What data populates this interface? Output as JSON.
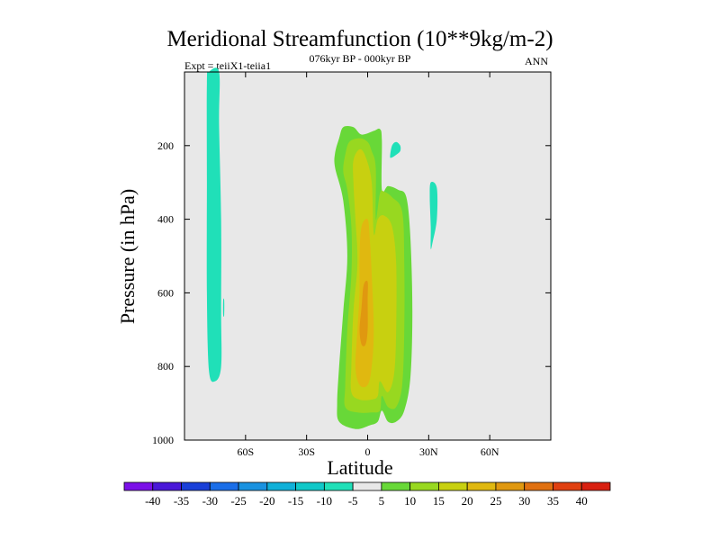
{
  "chart_data": {
    "type": "heatmap",
    "title": "Meridional Streamfunction (10**9kg/m-2)",
    "subtitle": "076kyr BP - 000kyr BP",
    "left_label": "Expt = teiiX1-teiia1",
    "right_label": "ANN",
    "xlabel": "Latitude",
    "ylabel": "Pressure (in hPa)",
    "xlim": [
      -90,
      90
    ],
    "ylim": [
      1000,
      0
    ],
    "x_ticks": [
      {
        "value": -60,
        "label": "60S"
      },
      {
        "value": -30,
        "label": "30S"
      },
      {
        "value": 0,
        "label": "0"
      },
      {
        "value": 30,
        "label": "30N"
      },
      {
        "value": 60,
        "label": "60N"
      }
    ],
    "y_ticks": [
      {
        "value": 200,
        "label": "200"
      },
      {
        "value": 400,
        "label": "400"
      },
      {
        "value": 600,
        "label": "600"
      },
      {
        "value": 800,
        "label": "800"
      },
      {
        "value": 1000,
        "label": "1000"
      }
    ],
    "background_color": "#e8e8e8",
    "colorbar": {
      "levels": [
        -40,
        -35,
        -30,
        -25,
        -20,
        -15,
        -10,
        -5,
        5,
        10,
        15,
        20,
        25,
        30,
        35,
        40
      ],
      "labels": [
        "-40",
        "-35",
        "-30",
        "-25",
        "-20",
        "-15",
        "-10",
        "-5",
        "5",
        "10",
        "15",
        "20",
        "25",
        "30",
        "35",
        "40"
      ],
      "colors": [
        "#7b10e8",
        "#4a18d8",
        "#1a40d8",
        "#1a6ee8",
        "#1a92e0",
        "#10b0d8",
        "#10c8c8",
        "#20e0b8",
        "#e8e8e8",
        "#68d838",
        "#98d820",
        "#c8d010",
        "#e0b810",
        "#e09810",
        "#e07010",
        "#e04010",
        "#d82010"
      ]
    },
    "contours": [
      {
        "level": -5,
        "color": "#20e0b8",
        "points": [
          [
            -78,
            0
          ],
          [
            -73,
            0
          ],
          [
            -73,
            140
          ],
          [
            -72,
            400
          ],
          [
            -72,
            650
          ],
          [
            -72,
            800
          ],
          [
            -75,
            840
          ],
          [
            -78,
            810
          ],
          [
            -79,
            600
          ],
          [
            -79,
            300
          ],
          [
            -79,
            30
          ]
        ]
      },
      {
        "level": -5,
        "color": "#20e0b8",
        "points": [
          [
            -71,
            620
          ],
          [
            -70.5,
            620
          ],
          [
            -70.5,
            660
          ],
          [
            -71,
            660
          ]
        ]
      },
      {
        "level": -5,
        "color": "#20e0b8",
        "points": [
          [
            11,
            230
          ],
          [
            12,
            200
          ],
          [
            14,
            190
          ],
          [
            16,
            200
          ],
          [
            16,
            215
          ],
          [
            14,
            225
          ],
          [
            12,
            232
          ]
        ]
      },
      {
        "level": -5,
        "color": "#20e0b8",
        "points": [
          [
            31,
            300
          ],
          [
            34,
            315
          ],
          [
            34,
            400
          ],
          [
            32,
            460
          ],
          [
            31,
            480
          ],
          [
            31,
            420
          ],
          [
            30.5,
            340
          ]
        ]
      },
      {
        "level": 5,
        "color": "#68d838",
        "points": [
          [
            -14,
            180
          ],
          [
            -12,
            150
          ],
          [
            -7,
            150
          ],
          [
            -3,
            170
          ],
          [
            3,
            160
          ],
          [
            6,
            155
          ],
          [
            7,
            185
          ],
          [
            7,
            320
          ],
          [
            10,
            310
          ],
          [
            15,
            320
          ],
          [
            19,
            340
          ],
          [
            21,
            450
          ],
          [
            22,
            650
          ],
          [
            21,
            830
          ],
          [
            18,
            920
          ],
          [
            14,
            950
          ],
          [
            10,
            950
          ],
          [
            7,
            920
          ],
          [
            5,
            950
          ],
          [
            1,
            960
          ],
          [
            -6,
            970
          ],
          [
            -14,
            950
          ],
          [
            -15,
            900
          ],
          [
            -14,
            800
          ],
          [
            -12,
            650
          ],
          [
            -10,
            500
          ],
          [
            -12,
            350
          ],
          [
            -16,
            260
          ],
          [
            -16,
            220
          ]
        ]
      },
      {
        "level": 10,
        "color": "#98d820",
        "points": [
          [
            -11,
            225
          ],
          [
            -9,
            190
          ],
          [
            -4,
            180
          ],
          [
            0,
            190
          ],
          [
            2,
            215
          ],
          [
            4,
            260
          ],
          [
            4,
            400
          ],
          [
            6,
            330
          ],
          [
            8,
            325
          ],
          [
            12,
            340
          ],
          [
            17,
            380
          ],
          [
            18,
            520
          ],
          [
            18,
            700
          ],
          [
            17,
            850
          ],
          [
            14,
            910
          ],
          [
            10,
            910
          ],
          [
            7,
            880
          ],
          [
            6,
            920
          ],
          [
            2,
            925
          ],
          [
            -5,
            925
          ],
          [
            -11,
            910
          ],
          [
            -11,
            850
          ],
          [
            -10,
            700
          ],
          [
            -8,
            550
          ],
          [
            -8,
            420
          ],
          [
            -10,
            320
          ],
          [
            -12,
            270
          ]
        ]
      },
      {
        "level": 15,
        "color": "#c8d010",
        "points": [
          [
            -7,
            240
          ],
          [
            -4,
            210
          ],
          [
            -1,
            230
          ],
          [
            2,
            300
          ],
          [
            3,
            440
          ],
          [
            5,
            400
          ],
          [
            8,
            390
          ],
          [
            12,
            420
          ],
          [
            14,
            520
          ],
          [
            14,
            700
          ],
          [
            13,
            820
          ],
          [
            10,
            870
          ],
          [
            6,
            840
          ],
          [
            5,
            880
          ],
          [
            2,
            890
          ],
          [
            -4,
            890
          ],
          [
            -8,
            870
          ],
          [
            -8,
            800
          ],
          [
            -7,
            650
          ],
          [
            -5,
            520
          ],
          [
            -6,
            400
          ],
          [
            -7,
            300
          ]
        ]
      },
      {
        "level": 20,
        "color": "#e0b810",
        "points": [
          [
            -3,
            420
          ],
          [
            0,
            400
          ],
          [
            1,
            450
          ],
          [
            2,
            550
          ],
          [
            3,
            700
          ],
          [
            2,
            800
          ],
          [
            0,
            850
          ],
          [
            -4,
            850
          ],
          [
            -6,
            800
          ],
          [
            -5,
            700
          ],
          [
            -4,
            600
          ],
          [
            -4,
            500
          ]
        ]
      },
      {
        "level": 25,
        "color": "#e09810",
        "points": [
          [
            -2,
            580
          ],
          [
            0,
            570
          ],
          [
            0,
            620
          ],
          [
            0,
            700
          ],
          [
            -1,
            740
          ],
          [
            -3,
            740
          ],
          [
            -4,
            700
          ],
          [
            -3,
            640
          ]
        ]
      }
    ]
  }
}
